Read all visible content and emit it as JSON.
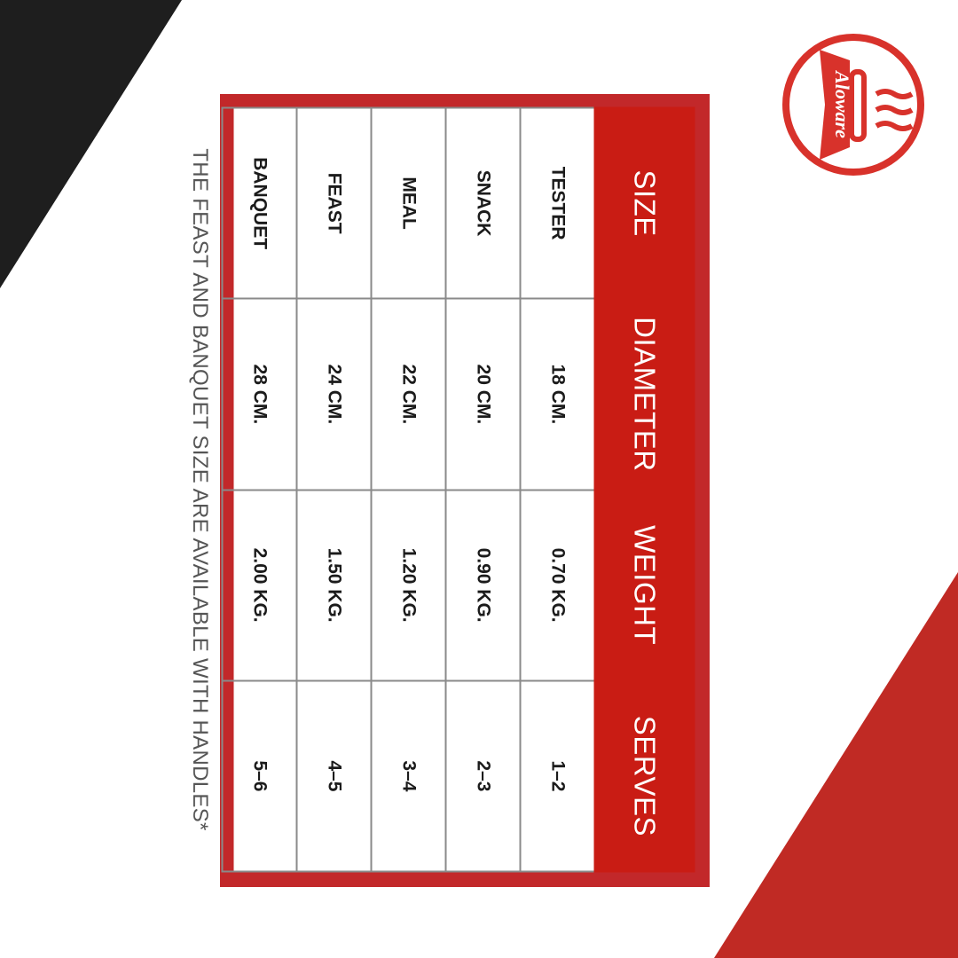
{
  "brand": {
    "logo_text": "Aloware",
    "accent": "#c91c14",
    "frame": "#c2282a"
  },
  "table": {
    "headers": [
      "SIZE",
      "DIAMETER",
      "WEIGHT",
      "SERVES"
    ],
    "rows": [
      [
        "TESTER",
        "18 CM.",
        "0.70 KG.",
        "1–2"
      ],
      [
        "SNACK",
        "20 CM.",
        "0.90 KG.",
        "2–3"
      ],
      [
        "MEAL",
        "22 CM.",
        "1.20 KG.",
        "3–4"
      ],
      [
        "FEAST",
        "24 CM.",
        "1.50 KG.",
        "4–5"
      ],
      [
        "BANQUET",
        "28 CM.",
        "2.00 KG.",
        "5–6"
      ]
    ]
  },
  "note": "THE FEAST AND BANQUET SIZE  ARE AVAILABLE WITH HANDLES*"
}
